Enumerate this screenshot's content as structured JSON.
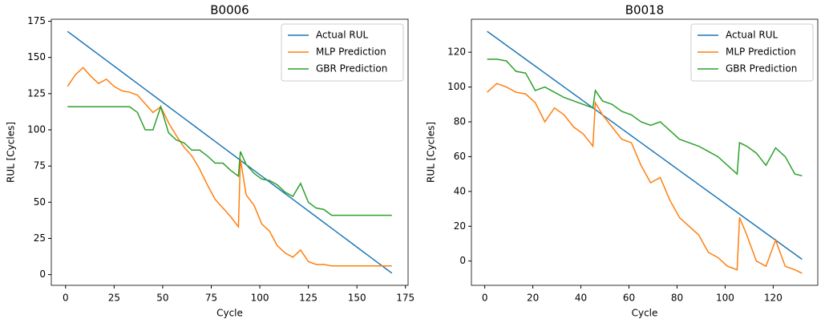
{
  "chart_data": [
    {
      "type": "line",
      "title": "B0006",
      "x_label": "Cycle",
      "y_label": "RUL [Cycles]",
      "x": [
        1,
        5,
        9,
        13,
        17,
        21,
        25,
        29,
        33,
        37,
        41,
        45,
        49,
        53,
        57,
        61,
        65,
        69,
        73,
        77,
        81,
        85,
        89,
        90,
        93,
        97,
        101,
        105,
        109,
        113,
        117,
        121,
        125,
        129,
        133,
        137,
        141,
        145,
        149,
        153,
        157,
        161,
        165,
        168
      ],
      "series": [
        {
          "name": "Actual RUL",
          "color": "#1f77b4",
          "values": [
            168,
            164,
            160,
            156,
            152,
            148,
            144,
            140,
            136,
            132,
            128,
            124,
            120,
            116,
            112,
            108,
            104,
            100,
            96,
            92,
            88,
            84,
            80,
            79,
            76,
            72,
            68,
            64,
            60,
            56,
            52,
            48,
            44,
            40,
            36,
            32,
            28,
            24,
            20,
            16,
            12,
            8,
            4,
            1
          ]
        },
        {
          "name": "MLP Prediction",
          "color": "#ff7f0e",
          "values": [
            130,
            138,
            143,
            137,
            132,
            135,
            130,
            127,
            126,
            124,
            118,
            112,
            116,
            105,
            96,
            88,
            82,
            73,
            62,
            52,
            46,
            40,
            33,
            80,
            55,
            48,
            35,
            30,
            20,
            15,
            12,
            17,
            9,
            7,
            7,
            6,
            6,
            6,
            6,
            6,
            6,
            6,
            6,
            6
          ]
        },
        {
          "name": "GBR Prediction",
          "color": "#2ca02c",
          "values": [
            116,
            116,
            116,
            116,
            116,
            116,
            116,
            116,
            116,
            112,
            100,
            100,
            116,
            98,
            93,
            91,
            86,
            86,
            82,
            77,
            77,
            72,
            68,
            85,
            76,
            70,
            66,
            65,
            62,
            57,
            54,
            63,
            50,
            46,
            45,
            41,
            41,
            41,
            41,
            41,
            41,
            41,
            41,
            41
          ]
        }
      ],
      "xlim": [
        -7.35,
        176.35
      ],
      "ylim": [
        -7.4,
        176.4
      ],
      "xticks": [
        0,
        25,
        50,
        75,
        100,
        125,
        150,
        175
      ],
      "yticks": [
        0,
        25,
        50,
        75,
        100,
        125,
        150,
        175
      ],
      "legend": "upper-right"
    },
    {
      "type": "line",
      "title": "B0018",
      "x_label": "Cycle",
      "y_label": "RUL [Cycles]",
      "x": [
        1,
        5,
        9,
        13,
        17,
        21,
        25,
        29,
        33,
        37,
        41,
        45,
        46,
        49,
        53,
        57,
        61,
        65,
        69,
        73,
        77,
        81,
        85,
        89,
        93,
        97,
        101,
        105,
        106,
        109,
        113,
        117,
        121,
        125,
        129,
        132
      ],
      "series": [
        {
          "name": "Actual RUL",
          "color": "#1f77b4",
          "values": [
            132,
            128,
            124,
            120,
            116,
            112,
            108,
            104,
            100,
            96,
            92,
            88,
            87,
            84,
            80,
            76,
            72,
            68,
            64,
            60,
            56,
            52,
            48,
            44,
            40,
            36,
            32,
            28,
            27,
            24,
            20,
            16,
            12,
            8,
            4,
            1
          ]
        },
        {
          "name": "MLP Prediction",
          "color": "#ff7f0e",
          "values": [
            97,
            102,
            100,
            97,
            96,
            91,
            80,
            88,
            84,
            77,
            73,
            66,
            91,
            84,
            77,
            70,
            68,
            55,
            45,
            48,
            35,
            25,
            20,
            15,
            5,
            2,
            -3,
            -5,
            25,
            15,
            0,
            -3,
            12,
            -3,
            -5,
            -7
          ]
        },
        {
          "name": "GBR Prediction",
          "color": "#2ca02c",
          "values": [
            116,
            116,
            115,
            109,
            108,
            98,
            100,
            97,
            94,
            92,
            90,
            88,
            98,
            92,
            90,
            86,
            84,
            80,
            78,
            80,
            75,
            70,
            68,
            66,
            63,
            60,
            55,
            50,
            68,
            66,
            62,
            55,
            65,
            60,
            50,
            49
          ]
        }
      ],
      "xlim": [
        -5.55,
        138.55
      ],
      "ylim": [
        -13.95,
        138.95
      ],
      "xticks": [
        0,
        20,
        40,
        60,
        80,
        100,
        120
      ],
      "yticks": [
        0,
        20,
        40,
        60,
        80,
        100,
        120
      ],
      "legend": "upper-right"
    }
  ]
}
